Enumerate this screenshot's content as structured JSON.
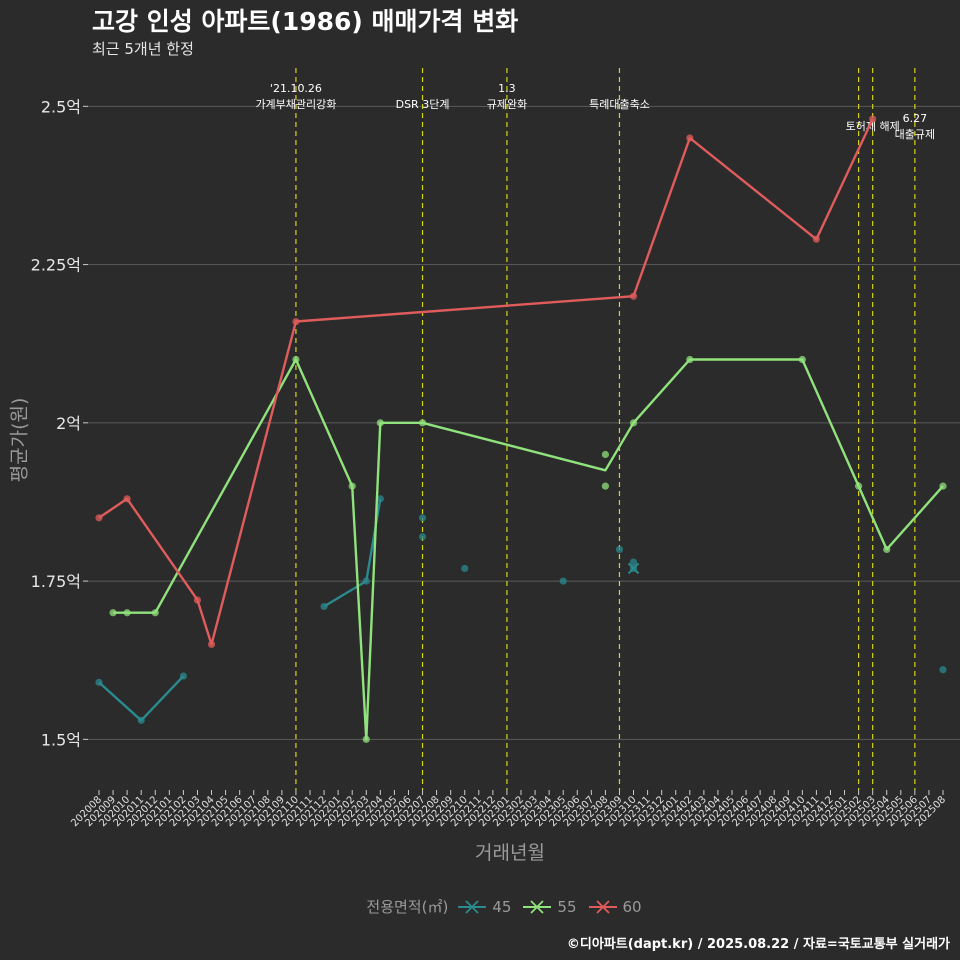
{
  "title": "고강 인성 아파트(1986) 매매가격 변화",
  "subtitle": "최근 5개년 한정",
  "caption": "©디아파트(dapt.kr) / 2025.08.22 / 자료=국토교통부 실거래가",
  "chart_data": {
    "type": "line",
    "xlabel": "거래년월",
    "ylabel": "평균가(원)",
    "legend_title": "전용면적(㎡)",
    "legend_position": "bottom",
    "y_tick_values": [
      1.5,
      1.75,
      2.0,
      2.25,
      2.5
    ],
    "y_tick_labels": [
      "1.5억",
      "1.75억",
      "2억",
      "2.25억",
      "2.5억"
    ],
    "ylim": [
      1.42,
      2.57
    ],
    "x_categories": [
      "202008",
      "202009",
      "202010",
      "202011",
      "202012",
      "202101",
      "202102",
      "202103",
      "202104",
      "202105",
      "202106",
      "202107",
      "202108",
      "202109",
      "202110",
      "202111",
      "202112",
      "202201",
      "202202",
      "202203",
      "202204",
      "202205",
      "202206",
      "202207",
      "202208",
      "202209",
      "202210",
      "202211",
      "202212",
      "202301",
      "202302",
      "202303",
      "202304",
      "202305",
      "202306",
      "202307",
      "202308",
      "202309",
      "202310",
      "202311",
      "202312",
      "202401",
      "202402",
      "202403",
      "202404",
      "202405",
      "202406",
      "202407",
      "202408",
      "202409",
      "202410",
      "202411",
      "202412",
      "202501",
      "202502",
      "202503",
      "202504",
      "202505",
      "202506",
      "202507",
      "202508"
    ],
    "x_tick_labels": [
      "202008",
      "202009",
      "202010",
      "202011",
      "202012",
      "202101",
      "202102",
      "202103",
      "202104",
      "202105",
      "202106",
      "202107",
      "202108",
      "202109",
      "202110",
      "202111",
      "202112",
      "202201",
      "202202",
      "202203",
      "202204",
      "202205",
      "202206",
      "202207",
      "202208",
      "202209",
      "202210",
      "202211",
      "202212",
      "202301",
      "202302",
      "202303",
      "202304",
      "202305",
      "202306",
      "202307",
      "202308",
      "202309",
      "202310",
      "202311",
      "202312",
      "202401",
      "202402",
      "202403",
      "202404",
      "202405",
      "202406",
      "202407",
      "202408",
      "202409",
      "202410",
      "202411",
      "202412",
      "202501",
      "202502",
      "202503",
      "202504",
      "202505",
      "202506",
      "202507",
      "202508"
    ],
    "series": [
      {
        "name": "45",
        "color": "#2a8a8e",
        "line_segments": [
          [
            [
              "202008",
              1.59
            ],
            [
              "202011",
              1.53
            ],
            [
              "202102",
              1.6
            ]
          ],
          [
            [
              "202112",
              1.71
            ],
            [
              "202203",
              1.75
            ],
            [
              "202204",
              1.88
            ]
          ],
          [
            [
              "202310",
              1.77
            ]
          ]
        ],
        "points": [
          [
            "202008",
            1.59
          ],
          [
            "202011",
            1.53
          ],
          [
            "202102",
            1.6
          ],
          [
            "202112",
            1.71
          ],
          [
            "202203",
            1.75
          ],
          [
            "202204",
            1.88
          ],
          [
            "202207",
            1.85
          ],
          [
            "202207",
            1.82
          ],
          [
            "202210",
            1.77
          ],
          [
            "202305",
            1.75
          ],
          [
            "202309",
            1.8
          ],
          [
            "202310",
            1.78
          ],
          [
            "202310",
            1.77
          ],
          [
            "202508",
            1.61
          ]
        ],
        "markers_x": [
          [
            "202310",
            1.77
          ]
        ]
      },
      {
        "name": "55",
        "color": "#90e27c",
        "line_segments": [
          [
            [
              "202009",
              1.7
            ],
            [
              "202010",
              1.7
            ],
            [
              "202012",
              1.7
            ],
            [
              "202110",
              2.1
            ],
            [
              "202202",
              1.9
            ],
            [
              "202203",
              1.5
            ],
            [
              "202204",
              2.0
            ],
            [
              "202207",
              2.0
            ],
            [
              "202308",
              1.925
            ],
            [
              "202310",
              2.0
            ],
            [
              "202402",
              2.1
            ],
            [
              "202410",
              2.1
            ],
            [
              "202502",
              1.9
            ],
            [
              "202504",
              1.8
            ],
            [
              "202508",
              1.9
            ]
          ]
        ],
        "points": [
          [
            "202009",
            1.7
          ],
          [
            "202010",
            1.7
          ],
          [
            "202012",
            1.7
          ],
          [
            "202110",
            2.1
          ],
          [
            "202202",
            1.9
          ],
          [
            "202203",
            1.5
          ],
          [
            "202204",
            2.0
          ],
          [
            "202207",
            2.0
          ],
          [
            "202308",
            1.95
          ],
          [
            "202308",
            1.9
          ],
          [
            "202310",
            2.0
          ],
          [
            "202402",
            2.1
          ],
          [
            "202410",
            2.1
          ],
          [
            "202502",
            1.9
          ],
          [
            "202504",
            1.8
          ],
          [
            "202508",
            1.9
          ]
        ]
      },
      {
        "name": "60",
        "color": "#e05c5c",
        "line_segments": [
          [
            [
              "202008",
              1.85
            ],
            [
              "202010",
              1.88
            ],
            [
              "202103",
              1.72
            ],
            [
              "202104",
              1.65
            ],
            [
              "202110",
              2.16
            ],
            [
              "202310",
              2.2
            ],
            [
              "202402",
              2.45
            ],
            [
              "202411",
              2.29
            ],
            [
              "202503",
              2.48
            ]
          ]
        ],
        "points": [
          [
            "202008",
            1.85
          ],
          [
            "202010",
            1.88
          ],
          [
            "202103",
            1.72
          ],
          [
            "202104",
            1.65
          ],
          [
            "202110",
            2.16
          ],
          [
            "202310",
            2.2
          ],
          [
            "202402",
            2.45
          ],
          [
            "202411",
            2.29
          ],
          [
            "202503",
            2.48
          ]
        ]
      }
    ],
    "events": [
      {
        "x": "202110",
        "lines": [
          "'21.10.26",
          "가계부채관리강화"
        ],
        "level": 0
      },
      {
        "x": "202207",
        "lines": [
          "DSR 3단계"
        ],
        "level": 2
      },
      {
        "x": "202301",
        "lines": [
          "1.3",
          "규제완화"
        ],
        "level": 0
      },
      {
        "x": "202309",
        "lines": [
          "특례대출축소"
        ],
        "level": 2
      },
      {
        "x": "202502",
        "lines": [],
        "level": 1
      },
      {
        "x": "202503",
        "lines": [
          "토허제 해제"
        ],
        "level": 1
      },
      {
        "x": "202506",
        "lines": [
          "6.27",
          "대출규제"
        ],
        "level": 3
      }
    ]
  }
}
